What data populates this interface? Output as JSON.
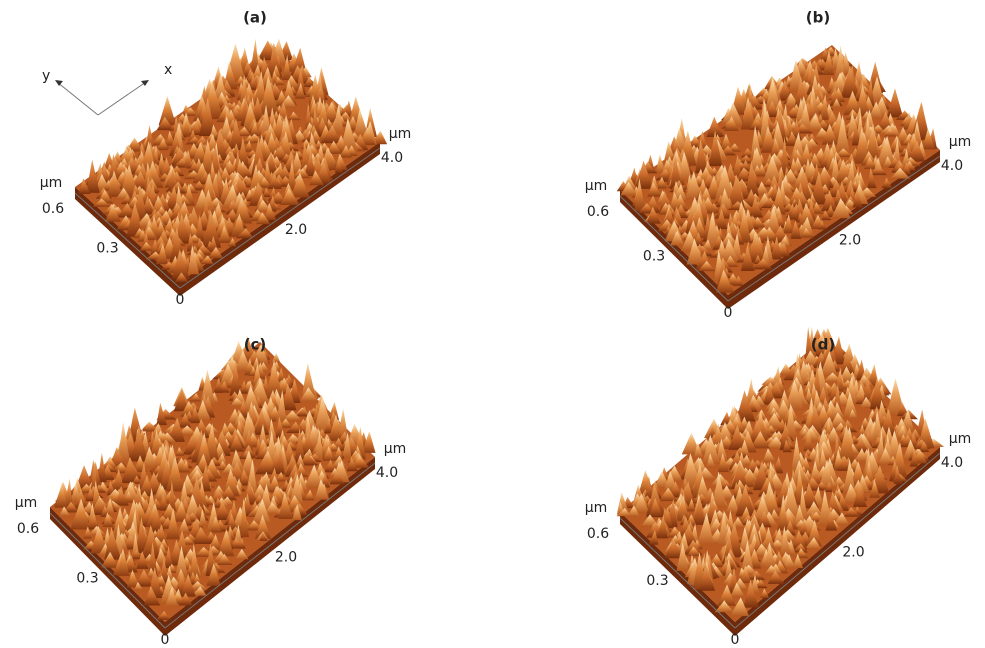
{
  "legend_axes": {
    "y": "y",
    "x": "x"
  },
  "panels": [
    {
      "label": "(a)",
      "y_unit": "µm",
      "y_ticks": [
        "0.6",
        "0.3"
      ],
      "origin": "0",
      "x_ticks": [
        "2.0",
        "4.0"
      ],
      "x_unit": "µm"
    },
    {
      "label": "(b)",
      "y_unit": "µm",
      "y_ticks": [
        "0.6",
        "0.3"
      ],
      "origin": "0",
      "x_ticks": [
        "2.0",
        "4.0"
      ],
      "x_unit": "µm"
    },
    {
      "label": "(c)",
      "y_unit": "µm",
      "y_ticks": [
        "0.6",
        "0.3"
      ],
      "origin": "0",
      "x_ticks": [
        "2.0",
        "4.0"
      ],
      "x_unit": "µm"
    },
    {
      "label": "(d)",
      "y_unit": "µm",
      "y_ticks": [
        "0.6",
        "0.3"
      ],
      "origin": "0",
      "x_ticks": [
        "2.0",
        "4.0"
      ],
      "x_unit": "µm"
    }
  ]
}
